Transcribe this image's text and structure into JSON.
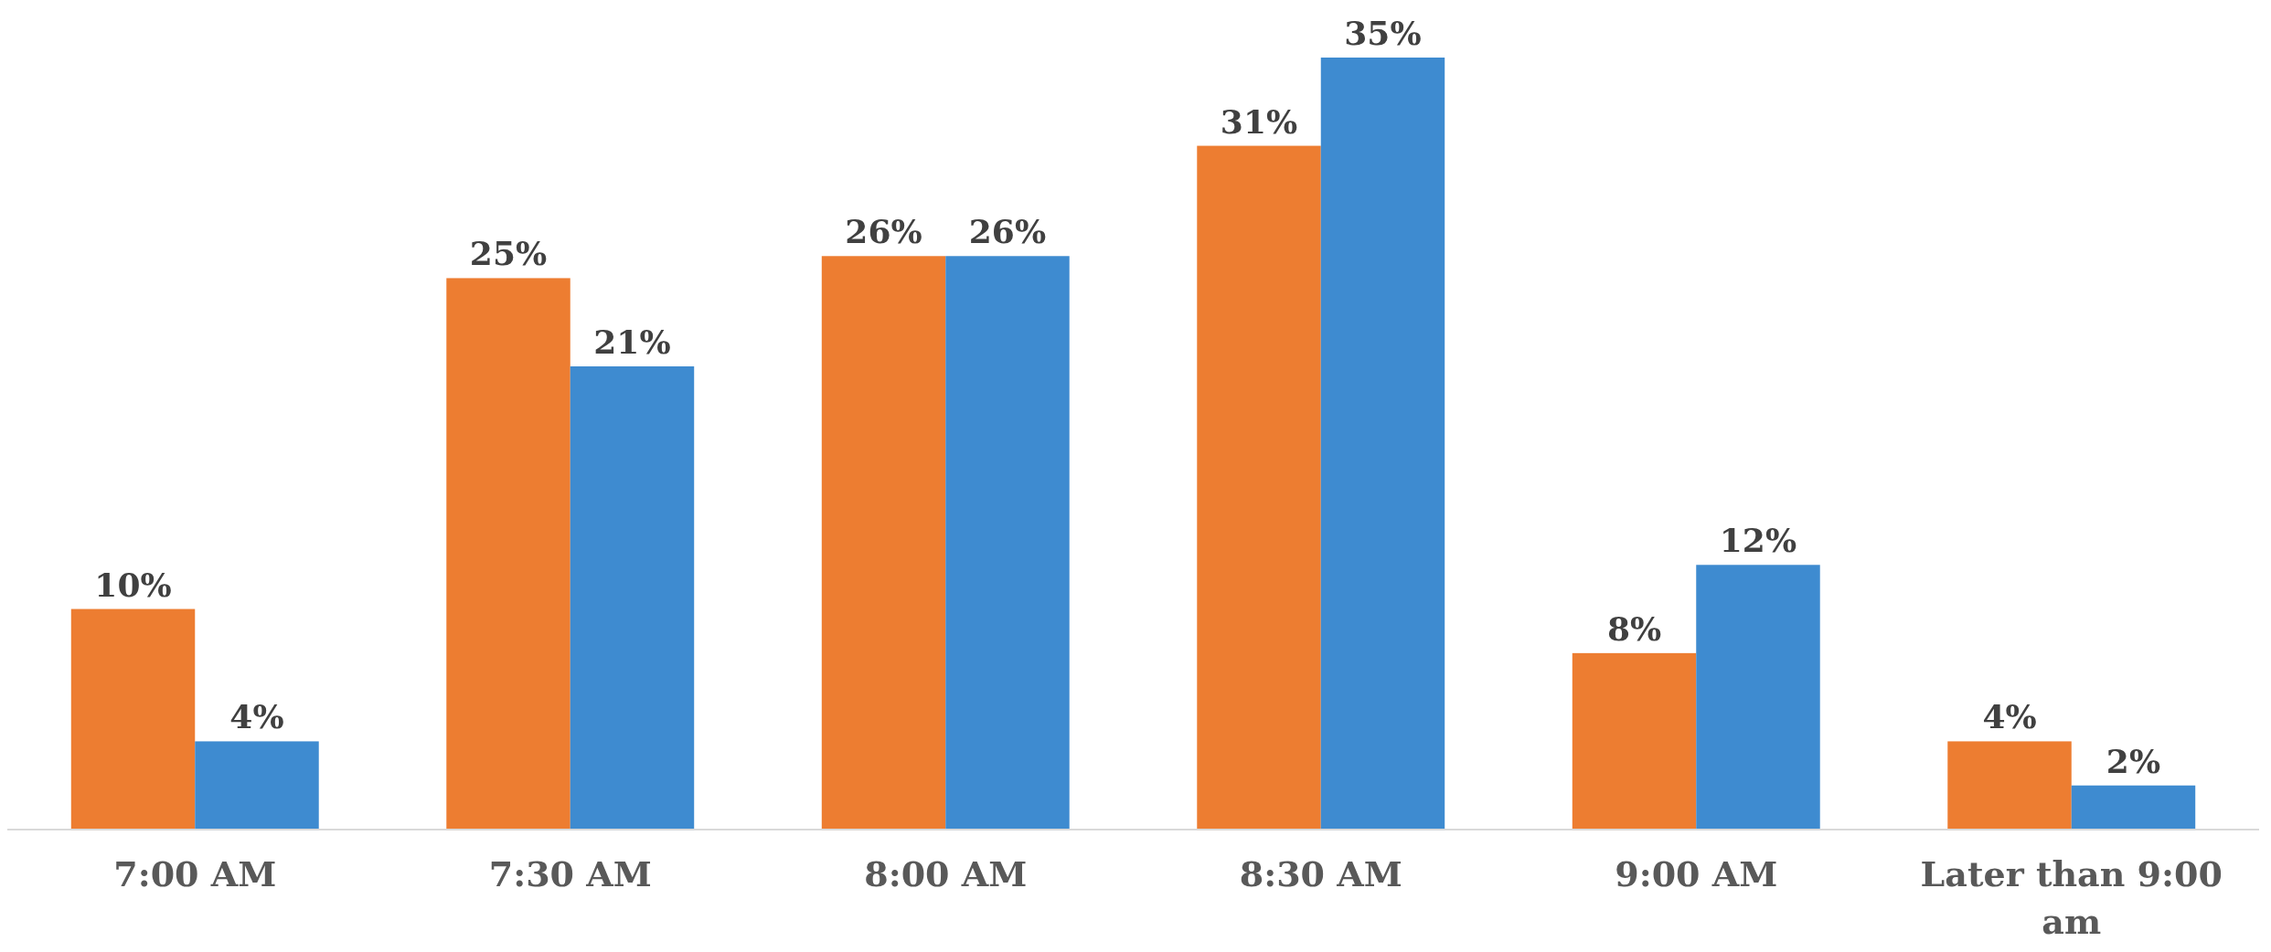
{
  "chart_data": {
    "type": "bar",
    "categories": [
      "7:00 AM",
      "7:30 AM",
      "8:00 AM",
      "8:30 AM",
      "9:00 AM",
      "Later than 9:00 am"
    ],
    "series": [
      {
        "color": "#ed7d31",
        "values": [
          10,
          25,
          26,
          31,
          8,
          4
        ],
        "value_labels": [
          "10%",
          "25%",
          "26%",
          "31%",
          "8%",
          "4%"
        ]
      },
      {
        "color": "#3e8bd0",
        "values": [
          4,
          21,
          26,
          35,
          12,
          2
        ],
        "value_labels": [
          "4%",
          "21%",
          "26%",
          "35%",
          "12%",
          "2%"
        ]
      }
    ]
  }
}
